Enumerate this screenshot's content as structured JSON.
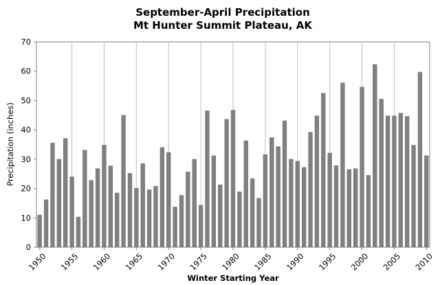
{
  "chart_data": {
    "type": "bar",
    "title": "September-April Precipitation",
    "subtitle": "Mt Hunter Summit Plateau, AK",
    "xlabel": "Winter Starting Year",
    "ylabel": "Precipitation (inches)",
    "ylim": [
      0,
      70
    ],
    "y_ticks": [
      0,
      10,
      20,
      30,
      40,
      50,
      60,
      70
    ],
    "xlim": [
      1950,
      2010
    ],
    "x_ticks": [
      1950,
      1955,
      1960,
      1965,
      1970,
      1975,
      1980,
      1985,
      1990,
      1995,
      2000,
      2005,
      2010
    ],
    "x_tick_labels": [
      "1950",
      "1955",
      "1960",
      "1965",
      "1970",
      "1975",
      "1980",
      "1985",
      "1990",
      "1995",
      "2000",
      "2005",
      "2010"
    ],
    "grid": "vertical",
    "bar_color": "#808080",
    "x": [
      1950,
      1951,
      1952,
      1953,
      1954,
      1955,
      1956,
      1957,
      1958,
      1959,
      1960,
      1961,
      1962,
      1963,
      1964,
      1965,
      1966,
      1967,
      1968,
      1969,
      1970,
      1971,
      1972,
      1973,
      1974,
      1975,
      1976,
      1977,
      1978,
      1979,
      1980,
      1981,
      1982,
      1983,
      1984,
      1985,
      1986,
      1987,
      1988,
      1989,
      1990,
      1991,
      1992,
      1993,
      1994,
      1995,
      1996,
      1997,
      1998,
      1999,
      2000,
      2001,
      2002,
      2003,
      2004,
      2005,
      2006,
      2007,
      2008,
      2009,
      2010
    ],
    "values": [
      11,
      16.2,
      35.5,
      30,
      37.1,
      24,
      10.3,
      33.1,
      22.8,
      26.8,
      34.8,
      27.7,
      18.5,
      45,
      25.2,
      20.1,
      28.5,
      19.6,
      20.8,
      34,
      32.3,
      13.7,
      17.7,
      25.7,
      30,
      14.3,
      46.5,
      31.2,
      21.3,
      43.6,
      46.7,
      18.9,
      36.3,
      23.4,
      16.7,
      31.6,
      37.4,
      34.3,
      43.1,
      30,
      29.3,
      27.2,
      39.2,
      44.8,
      52.5,
      32.1,
      27.8,
      56,
      26.5,
      26.8,
      54.6,
      24.5,
      62.3,
      50.5,
      44.8,
      44.8,
      45.7,
      44.6,
      34.8,
      59.7,
      31.2
    ]
  }
}
